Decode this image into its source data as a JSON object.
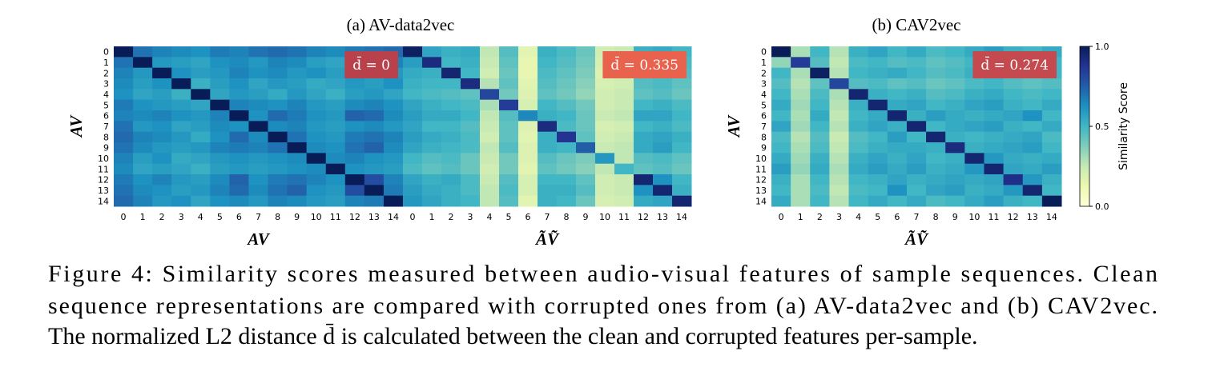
{
  "chart_data": [
    {
      "type": "heatmap",
      "title": "(a) AV-data2vec",
      "ylabel": "AV",
      "xlabel": "AV",
      "colormap": "YlGnBu",
      "vlim": [
        0,
        1
      ],
      "annotation": {
        "text": "d̄ = 0",
        "color": "#b8414c"
      },
      "xcategories": [
        "0",
        "1",
        "2",
        "3",
        "4",
        "5",
        "6",
        "7",
        "8",
        "9",
        "10",
        "11",
        "12",
        "13",
        "14"
      ],
      "ycategories": [
        "0",
        "1",
        "2",
        "3",
        "4",
        "5",
        "6",
        "7",
        "8",
        "9",
        "10",
        "11",
        "12",
        "13",
        "14"
      ],
      "values": [
        [
          1.0,
          0.7,
          0.66,
          0.64,
          0.62,
          0.68,
          0.66,
          0.7,
          0.72,
          0.7,
          0.66,
          0.64,
          0.68,
          0.7,
          0.72
        ],
        [
          0.7,
          1.0,
          0.6,
          0.58,
          0.56,
          0.62,
          0.64,
          0.6,
          0.66,
          0.64,
          0.58,
          0.56,
          0.62,
          0.64,
          0.66
        ],
        [
          0.66,
          0.6,
          1.0,
          0.62,
          0.58,
          0.6,
          0.66,
          0.62,
          0.64,
          0.6,
          0.62,
          0.58,
          0.66,
          0.62,
          0.6
        ],
        [
          0.64,
          0.58,
          0.62,
          1.0,
          0.52,
          0.58,
          0.62,
          0.56,
          0.6,
          0.58,
          0.54,
          0.56,
          0.6,
          0.58,
          0.62
        ],
        [
          0.62,
          0.56,
          0.58,
          0.52,
          1.0,
          0.56,
          0.6,
          0.58,
          0.54,
          0.6,
          0.56,
          0.52,
          0.58,
          0.6,
          0.56
        ],
        [
          0.68,
          0.62,
          0.6,
          0.58,
          0.56,
          1.0,
          0.66,
          0.64,
          0.62,
          0.66,
          0.6,
          0.58,
          0.64,
          0.66,
          0.62
        ],
        [
          0.66,
          0.64,
          0.66,
          0.62,
          0.6,
          0.66,
          1.0,
          0.62,
          0.72,
          0.68,
          0.62,
          0.6,
          0.74,
          0.72,
          0.64
        ],
        [
          0.7,
          0.6,
          0.62,
          0.56,
          0.58,
          0.64,
          0.62,
          1.0,
          0.64,
          0.66,
          0.6,
          0.58,
          0.62,
          0.64,
          0.6
        ],
        [
          0.72,
          0.66,
          0.64,
          0.6,
          0.54,
          0.62,
          0.72,
          0.64,
          1.0,
          0.7,
          0.62,
          0.6,
          0.68,
          0.7,
          0.66
        ],
        [
          0.7,
          0.64,
          0.6,
          0.58,
          0.6,
          0.66,
          0.68,
          0.66,
          0.7,
          1.0,
          0.64,
          0.62,
          0.7,
          0.74,
          0.64
        ],
        [
          0.66,
          0.58,
          0.62,
          0.54,
          0.56,
          0.6,
          0.62,
          0.6,
          0.62,
          0.64,
          1.0,
          0.64,
          0.66,
          0.62,
          0.6
        ],
        [
          0.64,
          0.56,
          0.58,
          0.56,
          0.52,
          0.58,
          0.6,
          0.58,
          0.6,
          0.62,
          0.64,
          1.0,
          0.62,
          0.6,
          0.58
        ],
        [
          0.68,
          0.62,
          0.66,
          0.6,
          0.58,
          0.64,
          0.74,
          0.62,
          0.68,
          0.7,
          0.66,
          0.62,
          1.0,
          0.8,
          0.66
        ],
        [
          0.7,
          0.64,
          0.62,
          0.58,
          0.6,
          0.66,
          0.72,
          0.64,
          0.7,
          0.74,
          0.62,
          0.6,
          0.8,
          1.0,
          0.68
        ],
        [
          0.72,
          0.66,
          0.6,
          0.62,
          0.56,
          0.62,
          0.64,
          0.6,
          0.66,
          0.64,
          0.6,
          0.58,
          0.66,
          0.68,
          1.0
        ]
      ]
    },
    {
      "type": "heatmap",
      "xlabel": "ÃṼ",
      "colormap": "YlGnBu",
      "vlim": [
        0,
        1
      ],
      "annotation": {
        "text": "d̄ = 0.335",
        "color": "#e9624e"
      },
      "xcategories": [
        "0",
        "1",
        "2",
        "3",
        "4",
        "5",
        "6",
        "7",
        "8",
        "9",
        "10",
        "11",
        "12",
        "13",
        "14"
      ],
      "values": [
        [
          0.98,
          0.56,
          0.52,
          0.54,
          0.26,
          0.46,
          0.16,
          0.52,
          0.48,
          0.42,
          0.22,
          0.24,
          0.52,
          0.54,
          0.5
        ],
        [
          0.58,
          0.92,
          0.5,
          0.52,
          0.24,
          0.44,
          0.14,
          0.5,
          0.46,
          0.4,
          0.2,
          0.22,
          0.5,
          0.52,
          0.48
        ],
        [
          0.54,
          0.52,
          0.95,
          0.5,
          0.22,
          0.42,
          0.14,
          0.48,
          0.44,
          0.38,
          0.18,
          0.2,
          0.48,
          0.5,
          0.46
        ],
        [
          0.52,
          0.5,
          0.5,
          0.92,
          0.28,
          0.44,
          0.16,
          0.46,
          0.42,
          0.36,
          0.2,
          0.22,
          0.46,
          0.48,
          0.44
        ],
        [
          0.5,
          0.48,
          0.46,
          0.44,
          0.82,
          0.4,
          0.18,
          0.44,
          0.4,
          0.34,
          0.22,
          0.24,
          0.44,
          0.46,
          0.42
        ],
        [
          0.56,
          0.52,
          0.5,
          0.48,
          0.3,
          0.85,
          0.2,
          0.5,
          0.46,
          0.4,
          0.22,
          0.24,
          0.5,
          0.52,
          0.48
        ],
        [
          0.58,
          0.54,
          0.54,
          0.5,
          0.26,
          0.46,
          0.65,
          0.52,
          0.5,
          0.42,
          0.24,
          0.26,
          0.56,
          0.56,
          0.5
        ],
        [
          0.56,
          0.5,
          0.5,
          0.46,
          0.24,
          0.44,
          0.18,
          0.92,
          0.48,
          0.42,
          0.2,
          0.22,
          0.5,
          0.52,
          0.48
        ],
        [
          0.58,
          0.54,
          0.52,
          0.48,
          0.22,
          0.44,
          0.16,
          0.52,
          0.88,
          0.44,
          0.22,
          0.24,
          0.54,
          0.56,
          0.52
        ],
        [
          0.56,
          0.52,
          0.5,
          0.48,
          0.26,
          0.46,
          0.18,
          0.52,
          0.5,
          0.75,
          0.24,
          0.26,
          0.54,
          0.58,
          0.5
        ],
        [
          0.5,
          0.46,
          0.48,
          0.42,
          0.24,
          0.4,
          0.18,
          0.46,
          0.42,
          0.38,
          0.6,
          0.26,
          0.46,
          0.48,
          0.44
        ],
        [
          0.48,
          0.44,
          0.46,
          0.42,
          0.22,
          0.4,
          0.16,
          0.44,
          0.4,
          0.36,
          0.26,
          0.5,
          0.44,
          0.46,
          0.42
        ],
        [
          0.56,
          0.52,
          0.54,
          0.48,
          0.24,
          0.46,
          0.2,
          0.5,
          0.5,
          0.44,
          0.22,
          0.24,
          0.95,
          0.62,
          0.5
        ],
        [
          0.58,
          0.54,
          0.52,
          0.48,
          0.26,
          0.48,
          0.2,
          0.52,
          0.52,
          0.46,
          0.22,
          0.24,
          0.62,
          0.95,
          0.52
        ],
        [
          0.6,
          0.56,
          0.52,
          0.5,
          0.26,
          0.46,
          0.16,
          0.52,
          0.5,
          0.42,
          0.2,
          0.22,
          0.54,
          0.56,
          0.95
        ]
      ]
    },
    {
      "type": "heatmap",
      "title": "(b) CAV2vec",
      "ylabel": "AV",
      "xlabel": "ÃṼ",
      "colormap": "YlGnBu",
      "vlim": [
        0,
        1
      ],
      "annotation": {
        "text": "d̄ = 0.274",
        "color": "#c44a4f"
      },
      "colorbar": {
        "label": "Similarity Score",
        "lim": [
          0,
          1
        ],
        "ticks": [
          {
            "value": 0,
            "label": "0.0"
          },
          {
            "value": 0.5,
            "label": "0.5"
          },
          {
            "value": 1,
            "label": "1.0"
          }
        ]
      },
      "xcategories": [
        "0",
        "1",
        "2",
        "3",
        "4",
        "5",
        "6",
        "7",
        "8",
        "9",
        "10",
        "11",
        "12",
        "13",
        "14"
      ],
      "ycategories": [
        "0",
        "1",
        "2",
        "3",
        "4",
        "5",
        "6",
        "7",
        "8",
        "9",
        "10",
        "11",
        "12",
        "13",
        "14"
      ],
      "values": [
        [
          1.0,
          0.3,
          0.5,
          0.28,
          0.52,
          0.56,
          0.5,
          0.54,
          0.48,
          0.5,
          0.54,
          0.58,
          0.52,
          0.5,
          0.54
        ],
        [
          0.34,
          0.85,
          0.46,
          0.26,
          0.48,
          0.5,
          0.46,
          0.48,
          0.44,
          0.46,
          0.5,
          0.52,
          0.48,
          0.46,
          0.5
        ],
        [
          0.5,
          0.3,
          0.98,
          0.28,
          0.5,
          0.52,
          0.54,
          0.5,
          0.46,
          0.48,
          0.52,
          0.54,
          0.5,
          0.48,
          0.5
        ],
        [
          0.46,
          0.28,
          0.44,
          0.82,
          0.46,
          0.48,
          0.44,
          0.46,
          0.42,
          0.44,
          0.48,
          0.5,
          0.46,
          0.44,
          0.46
        ],
        [
          0.5,
          0.3,
          0.48,
          0.3,
          0.95,
          0.52,
          0.5,
          0.52,
          0.46,
          0.48,
          0.52,
          0.54,
          0.5,
          0.48,
          0.5
        ],
        [
          0.54,
          0.32,
          0.5,
          0.28,
          0.52,
          0.95,
          0.54,
          0.56,
          0.5,
          0.52,
          0.56,
          0.58,
          0.52,
          0.5,
          0.54
        ],
        [
          0.5,
          0.3,
          0.54,
          0.26,
          0.5,
          0.54,
          0.95,
          0.52,
          0.58,
          0.54,
          0.52,
          0.54,
          0.56,
          0.62,
          0.5
        ],
        [
          0.56,
          0.32,
          0.5,
          0.28,
          0.52,
          0.56,
          0.52,
          0.95,
          0.5,
          0.54,
          0.56,
          0.58,
          0.52,
          0.5,
          0.54
        ],
        [
          0.48,
          0.28,
          0.46,
          0.24,
          0.46,
          0.5,
          0.58,
          0.5,
          0.95,
          0.52,
          0.5,
          0.52,
          0.54,
          0.56,
          0.48
        ],
        [
          0.5,
          0.3,
          0.48,
          0.26,
          0.48,
          0.52,
          0.54,
          0.54,
          0.52,
          0.92,
          0.52,
          0.54,
          0.56,
          0.58,
          0.5
        ],
        [
          0.54,
          0.32,
          0.52,
          0.28,
          0.52,
          0.56,
          0.52,
          0.56,
          0.5,
          0.52,
          0.95,
          0.6,
          0.54,
          0.52,
          0.54
        ],
        [
          0.58,
          0.34,
          0.54,
          0.3,
          0.54,
          0.58,
          0.54,
          0.58,
          0.52,
          0.54,
          0.6,
          0.95,
          0.56,
          0.54,
          0.58
        ],
        [
          0.52,
          0.3,
          0.5,
          0.28,
          0.5,
          0.52,
          0.56,
          0.52,
          0.54,
          0.56,
          0.54,
          0.56,
          0.9,
          0.6,
          0.52
        ],
        [
          0.5,
          0.3,
          0.48,
          0.26,
          0.48,
          0.5,
          0.62,
          0.5,
          0.56,
          0.58,
          0.52,
          0.54,
          0.6,
          0.95,
          0.5
        ],
        [
          0.54,
          0.3,
          0.5,
          0.28,
          0.5,
          0.54,
          0.5,
          0.54,
          0.48,
          0.5,
          0.54,
          0.58,
          0.52,
          0.5,
          1.0
        ]
      ]
    }
  ],
  "caption": [
    "Figure 4: Similarity scores measured between audio-visual features of sample sequences. Clean",
    "sequence representations are compared with corrupted ones from (a) AV-data2vec and (b) CAV2vec.",
    "The normalized L2 distance d̄ is calculated between the clean and corrupted features per-sample."
  ]
}
